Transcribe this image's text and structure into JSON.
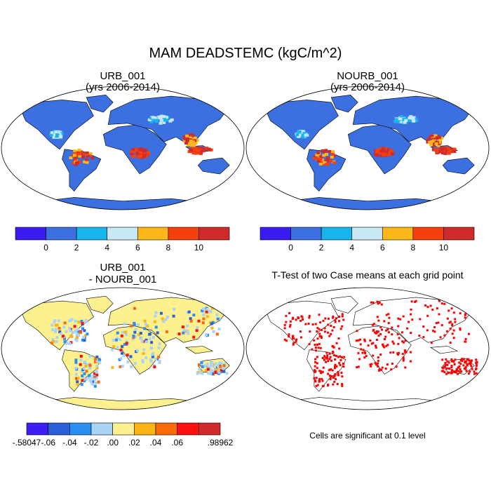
{
  "chart_data": {
    "type": "heatmap",
    "title": "MAM DEADSTEMC (kgC/m^2)",
    "panels": [
      {
        "id": "urb",
        "type": "heatmap",
        "title_line1": "URB_001",
        "title_line2": "(yrs 2006-2014)",
        "variable": "DEADSTEMC",
        "units": "kgC/m^2",
        "projection": "robinson-like global map",
        "note": "Mostly 0-2 over land; values above 8 in Amazon, Congo basin, SE Asia, Indonesia"
      },
      {
        "id": "nourb",
        "type": "heatmap",
        "title_line1": "NOURB_001",
        "title_line2": "(yrs 2006-2014)",
        "variable": "DEADSTEMC",
        "units": "kgC/m^2",
        "projection": "robinson-like global map",
        "note": "Nearly identical to URB_001"
      },
      {
        "id": "diff",
        "type": "heatmap",
        "title_line1": "URB_001",
        "title_line2": "- NOURB_001",
        "projection": "robinson-like global map",
        "note": "Differences mostly between -0.02 and 0.02; larger positive/negative patches in tropics"
      },
      {
        "id": "ttest",
        "type": "heatmap",
        "title_line1": "T-Test of two Case means at each grid point",
        "projection": "robinson-like global map",
        "note": "Red cells mark grid points significant at 0.1 level",
        "footnote": "Cells are significant at 0.1 level",
        "significance_level": 0.1
      }
    ],
    "colorbars": [
      {
        "id": "abs",
        "bin_colors": [
          "#3a1cf0",
          "#3c6fe0",
          "#18b4ec",
          "#c7e8f4",
          "#fdb71a",
          "#f5400d",
          "#d12a2a"
        ],
        "boundaries": [
          0,
          2,
          4,
          6,
          8,
          10
        ],
        "tick_labels": [
          "0",
          "2",
          "4",
          "6",
          "8",
          "10"
        ]
      },
      {
        "id": "diff",
        "bin_colors": [
          "#3c1ef0",
          "#2a5fd8",
          "#2a8ff0",
          "#a9d4f5",
          "#fdf08e",
          "#fbb414",
          "#fa6a08",
          "#fb0f0f",
          "#d12a2a"
        ],
        "boundaries": [
          -0.06,
          -0.04,
          -0.02,
          0.0,
          0.02,
          0.04,
          0.06
        ],
        "tick_labels": [
          "-.06",
          "-.04",
          "-.02",
          ".00",
          ".02",
          ".04",
          ".06"
        ],
        "min_label": "-.58047",
        "max_label": ".98962",
        "min": -0.58047,
        "max": 0.98962
      }
    ]
  }
}
